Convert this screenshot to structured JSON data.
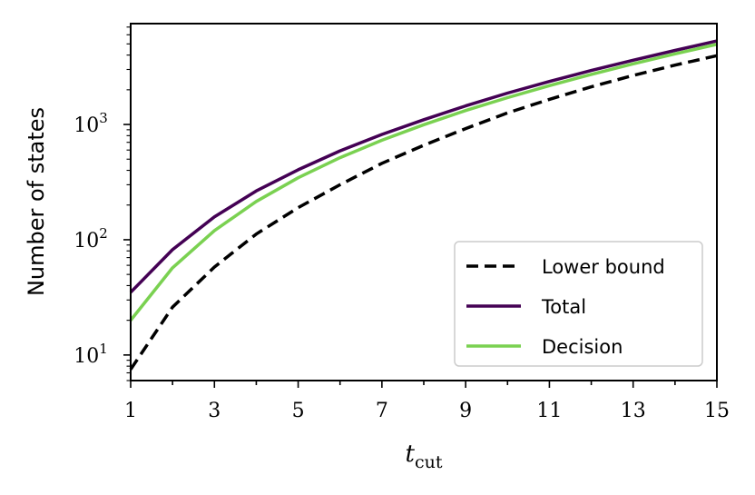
{
  "chart_data": {
    "type": "line",
    "xlabel": "t",
    "xlabel_sub": "cut",
    "ylabel": "Number of states",
    "yscale": "log",
    "xlim": [
      1,
      15
    ],
    "ylim": [
      6,
      7500
    ],
    "x_ticks": [
      "1",
      "3",
      "5",
      "7",
      "9",
      "11",
      "13",
      "15"
    ],
    "y_ticks": [
      {
        "value": 10,
        "base": "10",
        "exp": "1"
      },
      {
        "value": 100,
        "base": "10",
        "exp": "2"
      },
      {
        "value": 1000,
        "base": "10",
        "exp": "3"
      }
    ],
    "grid": false,
    "legend_position": "lower-right",
    "x": [
      1,
      2,
      3,
      4,
      5,
      6,
      7,
      8,
      9,
      10,
      11,
      12,
      13,
      14,
      15
    ],
    "series": [
      {
        "name": "Lower bound",
        "color": "#000000",
        "style": "dashed",
        "values": [
          7.5,
          26,
          58,
          112,
          190,
          300,
          460,
          660,
          920,
          1260,
          1650,
          2120,
          2660,
          3270,
          3950
        ]
      },
      {
        "name": "Total",
        "color": "#440154",
        "style": "solid",
        "values": [
          35,
          82,
          158,
          265,
          405,
          590,
          820,
          1100,
          1450,
          1870,
          2360,
          2940,
          3610,
          4390,
          5300
        ]
      },
      {
        "name": "Decision",
        "color": "#7ad151",
        "style": "solid",
        "values": [
          20,
          57,
          120,
          215,
          345,
          515,
          730,
          995,
          1320,
          1710,
          2170,
          2720,
          3360,
          4100,
          4960
        ]
      }
    ]
  }
}
